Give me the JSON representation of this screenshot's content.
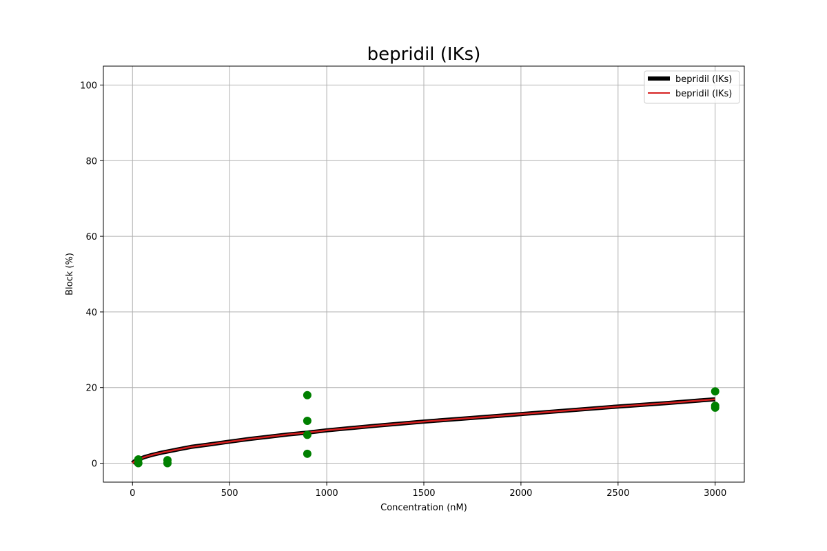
{
  "chart_data": {
    "type": "scatter",
    "title": "bepridil (IKs)",
    "xlabel": "Concentration (nM)",
    "ylabel": "Block (%)",
    "xlim": [
      -150,
      3150
    ],
    "ylim": [
      -5,
      105
    ],
    "xticks": [
      0,
      500,
      1000,
      1500,
      2000,
      2500,
      3000
    ],
    "yticks": [
      0,
      20,
      40,
      60,
      80,
      100
    ],
    "grid": true,
    "legend_position": "top-right",
    "lines": [
      {
        "name": "bepridil (IKs)",
        "color": "#000000",
        "x": [
          0,
          10,
          30,
          60,
          100,
          150,
          200,
          300,
          400,
          500,
          600,
          700,
          800,
          900,
          1000,
          1250,
          1500,
          1750,
          2000,
          2250,
          2500,
          2750,
          3000
        ],
        "y": [
          0,
          0.5,
          1.0,
          1.6,
          2.2,
          2.8,
          3.3,
          4.3,
          5.0,
          5.7,
          6.4,
          7.0,
          7.6,
          8.1,
          8.7,
          9.9,
          11.0,
          12.0,
          13.0,
          14.0,
          15.0,
          15.9,
          16.9
        ]
      },
      {
        "name": "bepridil (IKs)",
        "color": "#d62020",
        "x": [
          0,
          10,
          30,
          60,
          100,
          150,
          200,
          300,
          400,
          500,
          600,
          700,
          800,
          900,
          1000,
          1250,
          1500,
          1750,
          2000,
          2250,
          2500,
          2750,
          3000
        ],
        "y": [
          0,
          0.5,
          1.0,
          1.6,
          2.2,
          2.8,
          3.3,
          4.3,
          5.0,
          5.7,
          6.4,
          7.0,
          7.6,
          8.1,
          8.7,
          9.9,
          11.0,
          12.0,
          13.0,
          14.0,
          15.0,
          15.9,
          16.9
        ]
      }
    ],
    "points": {
      "color": "#008000",
      "x": [
        30,
        30,
        180,
        180,
        900,
        900,
        900,
        900,
        3000,
        3000,
        3000
      ],
      "y": [
        1.0,
        0.0,
        0.8,
        0.0,
        18.0,
        11.2,
        7.5,
        2.5,
        19.0,
        15.2,
        14.7
      ]
    }
  }
}
